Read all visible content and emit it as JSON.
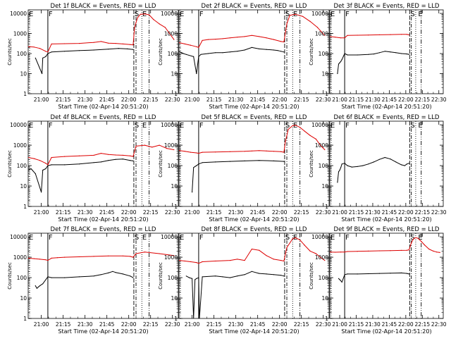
{
  "colors": {
    "events": "#000000",
    "lld": "#dd0000",
    "axes": "#000000",
    "background": "#ffffff"
  },
  "common": {
    "ylabel": "Counts/sec",
    "xlabel": "Start Time (02-Apr-14 20:51:20)",
    "x_ticks_minutes": [
      9,
      24,
      39,
      54,
      69,
      84,
      99
    ],
    "x_tick_labels": [
      "21:00",
      "21:15",
      "21:30",
      "21:45",
      "22:00",
      "22:15",
      "22:30"
    ],
    "y_ticks": [
      1,
      10,
      100,
      1000,
      10000
    ],
    "y_tick_labels": [
      "1",
      "10",
      "100",
      "1000",
      "10000"
    ],
    "y_scale": "log",
    "xlim_minutes": [
      0,
      103
    ],
    "marker_F_minute": 13.5,
    "marker_S_minute": 72.5,
    "marker_E_minute": 83,
    "dashdot_minute": 74,
    "dotted_minute": 78
  },
  "chart_data": [
    {
      "type": "line",
      "title": "Det 1f BLACK = Events, RED = LLD",
      "markers": [
        "E",
        "F",
        "S",
        "E"
      ],
      "ylim": [
        1,
        15000
      ],
      "series": [
        {
          "name": "BLACK = Events",
          "color": "#000000",
          "x": [
            0,
            5,
            9.5,
            10,
            12,
            13.5,
            16,
            25,
            35,
            45,
            55,
            62,
            68,
            72
          ],
          "y": [
            null,
            60,
            10,
            60,
            70,
            100,
            120,
            130,
            140,
            150,
            165,
            180,
            170,
            160
          ]
        },
        {
          "name": "RED = LLD",
          "color": "#dd0000",
          "x": [
            0,
            4,
            8,
            12,
            13.5,
            16,
            25,
            35,
            45,
            50,
            55,
            60,
            65,
            70,
            72,
            73,
            75,
            77,
            80,
            83,
            86,
            90,
            94,
            97,
            100
          ],
          "y": [
            220,
            210,
            180,
            130,
            120,
            300,
            310,
            320,
            360,
            400,
            330,
            320,
            300,
            280,
            270,
            2000,
            6000,
            9000,
            9500,
            8500,
            5000,
            3000,
            2000,
            1000,
            500
          ]
        }
      ]
    },
    {
      "type": "line",
      "title": "Det 2f BLACK = Events, RED = LLD",
      "markers": [
        "E",
        "F",
        "S",
        "E"
      ],
      "ylim": [
        1,
        15000
      ],
      "series": [
        {
          "name": "BLACK = Events",
          "color": "#000000",
          "x": [
            0,
            3,
            5,
            10,
            12,
            13.5,
            15,
            20,
            25,
            30,
            35,
            40,
            45,
            50,
            55,
            60,
            65,
            68,
            70,
            72
          ],
          "y": [
            130,
            100,
            90,
            70,
            10,
            70,
            90,
            100,
            110,
            110,
            120,
            130,
            150,
            200,
            170,
            160,
            150,
            140,
            130,
            120
          ]
        },
        {
          "name": "RED = LLD",
          "color": "#dd0000",
          "x": [
            0,
            4,
            8,
            12,
            13.5,
            16,
            20,
            25,
            30,
            35,
            40,
            45,
            50,
            55,
            60,
            65,
            70,
            72,
            74,
            76,
            80,
            85,
            90,
            95,
            100
          ],
          "y": [
            350,
            300,
            260,
            220,
            200,
            450,
            500,
            520,
            550,
            600,
            650,
            700,
            800,
            700,
            600,
            500,
            400,
            380,
            3000,
            8000,
            9000,
            7000,
            4000,
            2000,
            800
          ]
        }
      ]
    },
    {
      "type": "line",
      "title": "Det 3f BLACK = Events, RED = LLD",
      "markers": [
        "E",
        "F",
        "S",
        "E"
      ],
      "ylim": [
        1,
        15000
      ],
      "series": [
        {
          "name": "BLACK = Events",
          "color": "#000000",
          "x": [
            7,
            8,
            9,
            10,
            11,
            13.5,
            16,
            25,
            35,
            40,
            45,
            50,
            55,
            60,
            65,
            70,
            72
          ],
          "y": [
            10,
            30,
            35,
            40,
            50,
            100,
            85,
            85,
            90,
            95,
            110,
            130,
            120,
            110,
            100,
            95,
            90
          ]
        },
        {
          "name": "RED = LLD",
          "color": "#dd0000",
          "x": [
            0,
            5,
            10,
            13.5,
            16,
            25,
            35,
            45,
            55,
            65,
            70,
            72
          ],
          "y": [
            700,
            650,
            600,
            600,
            800,
            820,
            840,
            860,
            880,
            900,
            900,
            850
          ]
        }
      ]
    },
    {
      "type": "line",
      "title": "Det 4f BLACK = Events, RED = LLD",
      "markers": [
        "E",
        "F",
        "S",
        "E"
      ],
      "ylim": [
        1,
        15000
      ],
      "series": [
        {
          "name": "BLACK = Events",
          "color": "#000000",
          "x": [
            0,
            2,
            5,
            9,
            10,
            12,
            13.5,
            16,
            25,
            35,
            45,
            50,
            55,
            60,
            65,
            70,
            72
          ],
          "y": [
            60,
            70,
            40,
            5,
            60,
            70,
            100,
            110,
            110,
            120,
            140,
            150,
            180,
            200,
            210,
            180,
            170
          ]
        },
        {
          "name": "RED = LLD",
          "color": "#dd0000",
          "x": [
            0,
            4,
            8,
            12,
            13.5,
            16,
            25,
            35,
            45,
            50,
            55,
            60,
            65,
            70,
            72,
            74,
            80,
            85,
            90,
            95,
            100
          ],
          "y": [
            250,
            220,
            180,
            130,
            110,
            250,
            280,
            300,
            320,
            400,
            350,
            330,
            320,
            300,
            280,
            900,
            1000,
            800,
            1000,
            700,
            600
          ]
        }
      ]
    },
    {
      "type": "line",
      "title": "Det 5f BLACK = Events, RED = LLD",
      "markers": [
        "E",
        "F",
        "S",
        "E"
      ],
      "ylim": [
        1,
        15000
      ],
      "series": [
        {
          "name": "BLACK = Events",
          "color": "#000000",
          "x": [
            9,
            10,
            11,
            12,
            13.5,
            16,
            25,
            35,
            45,
            55,
            65,
            72
          ],
          "y": [
            5,
            80,
            90,
            100,
            120,
            140,
            150,
            160,
            170,
            180,
            170,
            160
          ]
        },
        {
          "name": "RED = LLD",
          "color": "#dd0000",
          "x": [
            0,
            4,
            8,
            12,
            13.5,
            16,
            25,
            35,
            45,
            50,
            55,
            60,
            65,
            70,
            72,
            73,
            75,
            78,
            80,
            83,
            86,
            90,
            94,
            97,
            100
          ],
          "y": [
            550,
            500,
            450,
            420,
            400,
            450,
            460,
            480,
            500,
            520,
            540,
            520,
            500,
            480,
            450,
            1500,
            6000,
            9000,
            9500,
            7500,
            5000,
            3000,
            2000,
            1000,
            600
          ]
        }
      ]
    },
    {
      "type": "line",
      "title": "Det 6f BLACK = Events, RED = LLD",
      "markers": [
        "E",
        "F",
        "S",
        "E"
      ],
      "ylim": [
        1,
        15000
      ],
      "series": [
        {
          "name": "BLACK = Events",
          "color": "#000000",
          "x": [
            7,
            8,
            9,
            10,
            11,
            13.5,
            16,
            20,
            25,
            30,
            35,
            40,
            45,
            50,
            55,
            60,
            65,
            68,
            70,
            72
          ],
          "y": [
            15,
            50,
            60,
            80,
            120,
            130,
            100,
            85,
            90,
            100,
            120,
            150,
            200,
            250,
            210,
            150,
            110,
            100,
            120,
            130
          ]
        }
      ]
    },
    {
      "type": "line",
      "title": "Det 7f BLACK = Events, RED = LLD",
      "markers": [
        "E",
        "F",
        "S",
        "E"
      ],
      "ylim": [
        1,
        15000
      ],
      "series": [
        {
          "name": "BLACK = Events",
          "color": "#000000",
          "x": [
            5,
            6,
            7,
            8,
            10,
            13.5,
            16,
            25,
            35,
            45,
            50,
            55,
            58,
            60,
            65,
            70,
            72
          ],
          "y": [
            40,
            30,
            35,
            40,
            50,
            110,
            100,
            100,
            110,
            120,
            140,
            170,
            200,
            180,
            150,
            120,
            100
          ]
        },
        {
          "name": "RED = LLD",
          "color": "#dd0000",
          "x": [
            0,
            4,
            8,
            12,
            13.5,
            16,
            20,
            25,
            35,
            45,
            55,
            65,
            70,
            72,
            74,
            80,
            90,
            100
          ],
          "y": [
            900,
            850,
            800,
            750,
            700,
            900,
            950,
            1000,
            1050,
            1100,
            1150,
            1150,
            1100,
            1000,
            1500,
            1800,
            1500,
            1200
          ]
        }
      ]
    },
    {
      "type": "line",
      "title": "Det 8f BLACK = Events, RED = LLD",
      "markers": [
        "E",
        "F",
        "S",
        "E"
      ],
      "ylim": [
        1,
        15000
      ],
      "series": [
        {
          "name": "BLACK = Events",
          "color": "#000000",
          "x": [
            5,
            7,
            9,
            10,
            11,
            12,
            13.5,
            14,
            16,
            25,
            30,
            35,
            40,
            45,
            50,
            55,
            60,
            65,
            70,
            72
          ],
          "y": [
            120,
            100,
            90,
            1,
            80,
            90,
            100,
            1,
            110,
            120,
            110,
            100,
            120,
            140,
            200,
            160,
            150,
            140,
            130,
            120
          ]
        },
        {
          "name": "RED = LLD",
          "color": "#dd0000",
          "x": [
            0,
            4,
            8,
            12,
            13.5,
            16,
            25,
            35,
            40,
            45,
            50,
            55,
            60,
            65,
            70,
            72,
            74,
            78,
            80,
            83,
            86,
            90,
            94,
            97,
            100
          ],
          "y": [
            700,
            650,
            600,
            550,
            500,
            600,
            650,
            700,
            800,
            700,
            2500,
            2200,
            1200,
            800,
            700,
            650,
            3000,
            8000,
            9000,
            7000,
            4000,
            2000,
            1500,
            1000,
            700
          ]
        }
      ]
    },
    {
      "type": "line",
      "title": "Det 9f BLACK = Events, RED = LLD",
      "markers": [
        "E",
        "F",
        "S",
        "E"
      ],
      "ylim": [
        1,
        15000
      ],
      "series": [
        {
          "name": "BLACK = Events",
          "color": "#000000",
          "x": [
            8,
            9,
            10,
            11,
            13.5,
            16,
            25,
            35,
            45,
            55,
            65,
            70,
            72
          ],
          "y": [
            90,
            80,
            70,
            60,
            140,
            150,
            150,
            155,
            160,
            165,
            170,
            160,
            150
          ]
        },
        {
          "name": "RED = LLD",
          "color": "#dd0000",
          "x": [
            0,
            5,
            10,
            13.5,
            16,
            25,
            35,
            45,
            55,
            65,
            70,
            72,
            74,
            76,
            78,
            80,
            83,
            86,
            90,
            94,
            97,
            100
          ],
          "y": [
            1800,
            1750,
            1800,
            1800,
            1900,
            1950,
            2000,
            2050,
            2100,
            2150,
            2200,
            2300,
            5000,
            8000,
            9000,
            8500,
            6000,
            4000,
            2500,
            2000,
            1800,
            1700
          ]
        }
      ]
    }
  ]
}
